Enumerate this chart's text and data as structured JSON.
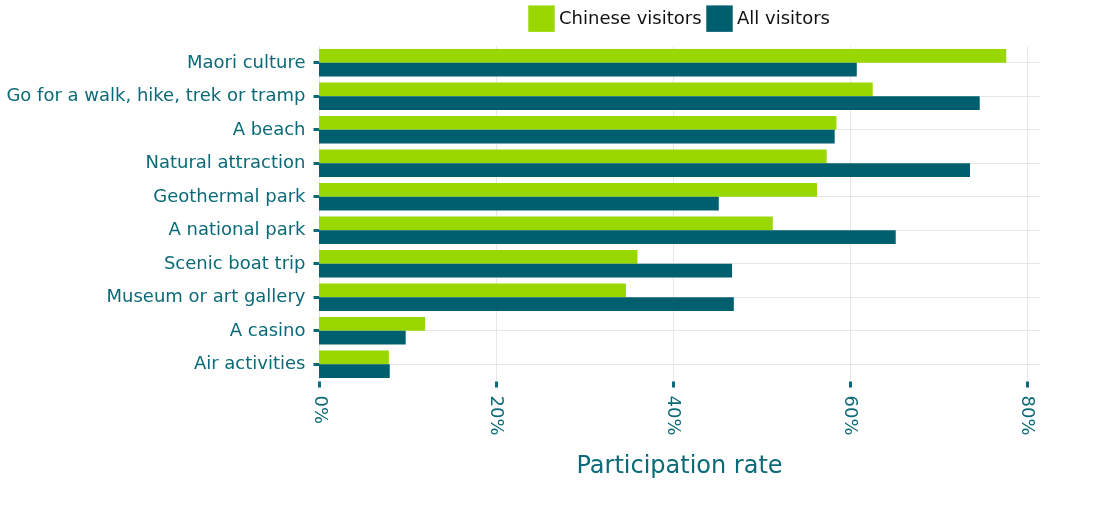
{
  "chart_data": {
    "type": "bar",
    "orientation": "horizontal",
    "xlabel": "Participation rate",
    "categories": [
      "Maori culture",
      "Go for a walk, hike, trek or tramp",
      "A beach",
      "Natural attraction",
      "Geothermal park",
      "A national park",
      "Scenic boat trip",
      "Museum or art gallery",
      "A casino",
      "Air activities"
    ],
    "series": [
      {
        "name": "Chinese visitors",
        "color": "#99d700",
        "values": [
          77.7,
          62.6,
          58.5,
          57.4,
          56.3,
          51.3,
          36.0,
          34.7,
          12.0,
          7.9
        ]
      },
      {
        "name": "All visitors",
        "color": "#005f6e",
        "values": [
          60.8,
          74.7,
          58.3,
          73.6,
          45.2,
          65.2,
          46.7,
          46.9,
          9.8,
          8.0
        ]
      }
    ],
    "xlim": [
      0,
      81.4
    ],
    "xticks": [
      {
        "value": 0,
        "label": "0%"
      },
      {
        "value": 20,
        "label": "20%"
      },
      {
        "value": 40,
        "label": "40%"
      },
      {
        "value": 60,
        "label": "60%"
      },
      {
        "value": 80,
        "label": "80%"
      }
    ],
    "grid": true,
    "legend": "top"
  }
}
